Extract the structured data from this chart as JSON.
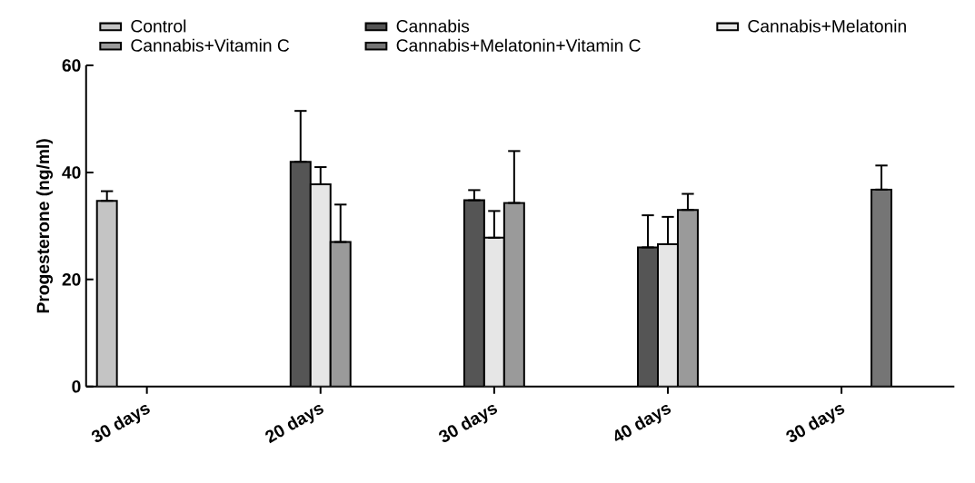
{
  "chart_data": {
    "type": "bar",
    "ylabel": "Progesterone (ng/ml)",
    "categories": [
      "30 days",
      "20 days",
      "30 days",
      "40 days",
      "30 days"
    ],
    "series": [
      {
        "name": "Control",
        "color": "#c4c4c4",
        "values": [
          34.7,
          null,
          null,
          null,
          null
        ],
        "errors": [
          [
            34.7,
            36.5
          ],
          null,
          null,
          null,
          null
        ]
      },
      {
        "name": "Cannabis",
        "color": "#555555",
        "values": [
          null,
          42,
          34.8,
          26,
          null
        ],
        "errors": [
          null,
          [
            42,
            51.5
          ],
          [
            34.8,
            36.7
          ],
          [
            26,
            32
          ],
          null
        ]
      },
      {
        "name": "Cannabis+Melatonin",
        "color": "#e6e6e6",
        "values": [
          null,
          37.8,
          27.8,
          26.6,
          null
        ],
        "errors": [
          null,
          [
            37.8,
            41
          ],
          [
            27.8,
            32.8
          ],
          [
            26.6,
            31.7
          ],
          null
        ]
      },
      {
        "name": "Cannabis+Vitamin C",
        "color": "#9a9a9a",
        "values": [
          null,
          27,
          34.3,
          33,
          null
        ],
        "errors": [
          null,
          [
            27,
            34
          ],
          [
            34.3,
            44
          ],
          [
            33,
            36
          ],
          null
        ]
      },
      {
        "name": "Cannabis+Melatonin+Vitamin C",
        "color": "#757575",
        "values": [
          null,
          null,
          null,
          null,
          36.8
        ],
        "errors": [
          null,
          null,
          null,
          null,
          [
            36.8,
            41.3
          ]
        ]
      }
    ],
    "ylim": [
      0,
      60
    ],
    "yticks": [
      0,
      20,
      40,
      60
    ],
    "grid": false,
    "legend": "top"
  }
}
